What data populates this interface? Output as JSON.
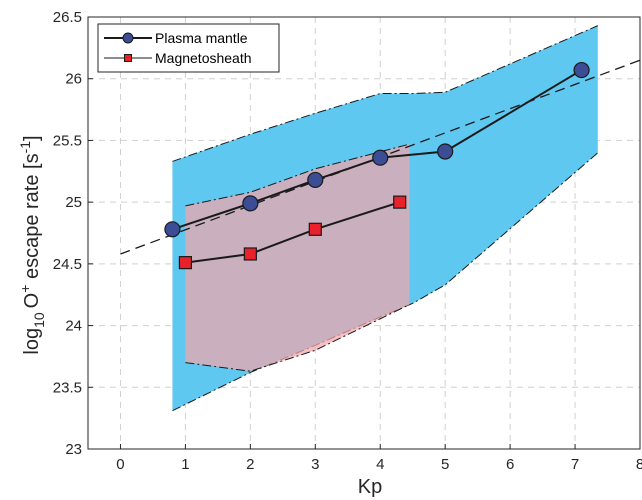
{
  "chart_data": {
    "type": "line",
    "xlabel": "Kp",
    "ylabel": {
      "prefix": "log",
      "subscript": "10",
      "species": "O",
      "species_sup": "+",
      "text": " escape rate [s",
      "unit_sup": "-1",
      "suffix": "]"
    },
    "xlim": [
      -0.5,
      8
    ],
    "ylim": [
      23,
      26.5
    ],
    "x_ticks": [
      "0",
      "1",
      "2",
      "3",
      "4",
      "5",
      "6",
      "7",
      "8"
    ],
    "y_ticks": [
      "23",
      "23.5",
      "24",
      "24.5",
      "25",
      "25.5",
      "26",
      "26.5"
    ],
    "grid": true,
    "legend_position": "top-left",
    "series": [
      {
        "name": "Plasma mantle",
        "marker": "circle",
        "color": "#3b4d94",
        "x": [
          0.8,
          2,
          3,
          4,
          5,
          7.1
        ],
        "y": [
          24.78,
          24.99,
          25.18,
          25.36,
          25.41,
          26.07
        ]
      },
      {
        "name": "Magnetosheath",
        "marker": "square",
        "color": "#e8212a",
        "x": [
          1,
          2,
          3,
          4.3
        ],
        "y": [
          24.51,
          24.58,
          24.78,
          25.0
        ]
      }
    ],
    "bands": [
      {
        "series": "Plasma mantle",
        "color": "#5ec8f0",
        "upper": [
          [
            0.8,
            25.33
          ],
          [
            2,
            25.55
          ],
          [
            3,
            25.72
          ],
          [
            4,
            25.88
          ],
          [
            4.5,
            25.88
          ],
          [
            5,
            25.89
          ],
          [
            7.35,
            26.43
          ]
        ],
        "lower": [
          [
            0.8,
            23.31
          ],
          [
            2,
            23.62
          ],
          [
            3,
            23.84
          ],
          [
            4,
            24.07
          ],
          [
            4.5,
            24.18
          ],
          [
            5,
            24.33
          ],
          [
            7.35,
            25.4
          ]
        ]
      },
      {
        "series": "Magnetosheath",
        "color": "#f4a6ab",
        "upper": [
          [
            1,
            24.97
          ],
          [
            2,
            25.08
          ],
          [
            3,
            25.27
          ],
          [
            4.45,
            25.47
          ]
        ],
        "lower": [
          [
            1,
            23.7
          ],
          [
            2,
            23.63
          ],
          [
            3,
            23.8
          ],
          [
            4.45,
            24.17
          ]
        ]
      }
    ],
    "fit_line": {
      "style": "dashed",
      "x": [
        0,
        8
      ],
      "y": [
        24.58,
        26.15
      ]
    }
  }
}
